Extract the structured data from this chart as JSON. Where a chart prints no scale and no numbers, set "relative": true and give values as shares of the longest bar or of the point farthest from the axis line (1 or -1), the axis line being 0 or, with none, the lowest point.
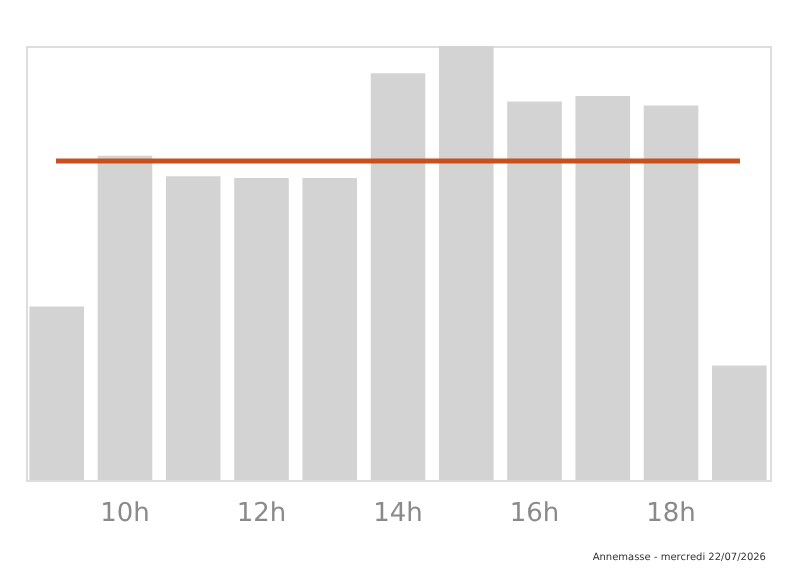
{
  "chart_data": {
    "type": "bar",
    "relative": true,
    "categories": [
      null,
      "10h",
      null,
      "12h",
      null,
      "14h",
      null,
      "16h",
      null,
      "18h",
      null
    ],
    "values": [
      0.4,
      0.747,
      0.7,
      0.696,
      0.696,
      0.937,
      1,
      0.872,
      0.885,
      0.863,
      0.264
    ],
    "color": "#d3d3d3",
    "ref_lines": [
      {
        "axis": "y",
        "value": 0.735,
        "color": "#c8501e"
      }
    ],
    "annotations": [
      "Annemasse - mercredi 22/07/2026"
    ],
    "grid": false
  }
}
